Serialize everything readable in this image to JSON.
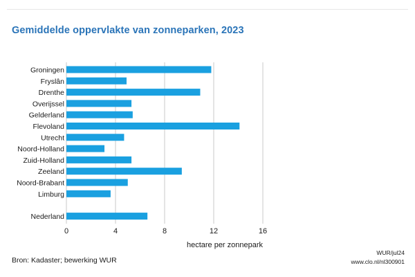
{
  "chart_data": {
    "type": "bar",
    "orientation": "horizontal",
    "title": "Gemiddelde oppervlakte van zonneparken, 2023",
    "xlabel": "hectare per zonnepark",
    "ylabel": "",
    "categories": [
      "Groningen",
      "Fryslân",
      "Drenthe",
      "Overijssel",
      "Gelderland",
      "Flevoland",
      "Utrecht",
      "Noord-Holland",
      "Zuid-Holland",
      "Zeeland",
      "Noord-Brabant",
      "Limburg",
      "Nederland"
    ],
    "values": [
      11.8,
      4.9,
      10.9,
      5.3,
      5.4,
      14.1,
      4.7,
      3.1,
      5.3,
      9.4,
      5.0,
      3.6,
      6.6
    ],
    "xlim": [
      0,
      16
    ],
    "xticks": [
      0,
      4,
      8,
      12,
      16
    ],
    "grid": true,
    "bar_color": "#1aa0e0"
  },
  "footer": {
    "source": "Bron: Kadaster; bewerking WUR",
    "credit_line1": "WUR/jul24",
    "credit_line2": "www.clo.nl/nl300901"
  }
}
